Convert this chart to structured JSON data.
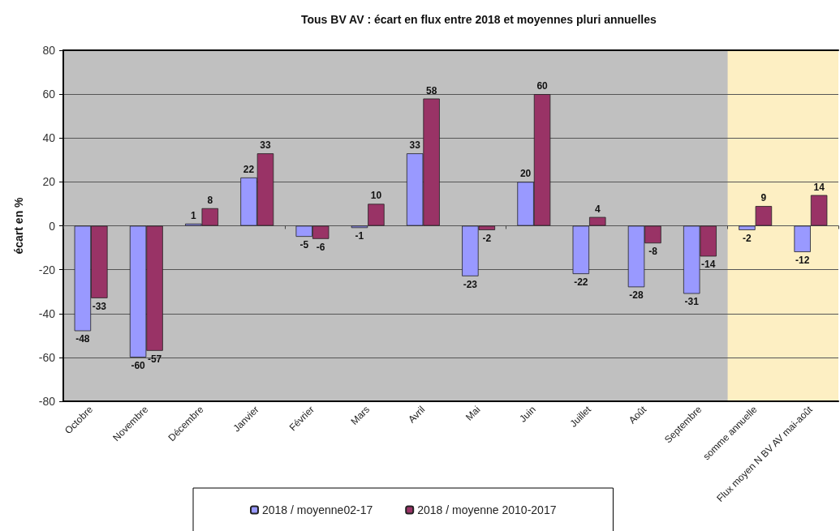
{
  "chart_data": {
    "type": "bar",
    "title": "Tous BV AV : écart en flux entre 2018 et moyennes pluri annuelles",
    "ylabel": "écart en %",
    "categories": [
      "Octobre",
      "Novembre",
      "Décembre",
      "Janvier",
      "Février",
      "Mars",
      "Avril",
      "Mai",
      "Juin",
      "Juillet",
      "Août",
      "Septembre",
      "somme annuelle",
      "Flux moyen N BV AV mai-août"
    ],
    "series": [
      {
        "name": "2018 / moyenne02-17",
        "color": "#9999ff",
        "values": [
          -48,
          -60,
          1,
          22,
          -5,
          -1,
          33,
          -23,
          20,
          -22,
          -28,
          -31,
          -2,
          -12
        ]
      },
      {
        "name": "2018 / moyenne 2010-2017",
        "color": "#993366",
        "values": [
          -33,
          -57,
          8,
          33,
          -6,
          10,
          58,
          -2,
          60,
          4,
          -8,
          -14,
          9,
          14
        ]
      }
    ],
    "ylim": [
      -80,
      80
    ],
    "yticks": [
      -80,
      -60,
      -40,
      -20,
      0,
      20,
      40,
      60,
      80
    ],
    "bands": [
      {
        "axis": "x",
        "from": "somme annuelle",
        "to": "Flux moyen N BV AV mai-août",
        "color": "#fdefc3"
      }
    ],
    "data_labels": true,
    "grid": "y",
    "legend": "bottom"
  }
}
